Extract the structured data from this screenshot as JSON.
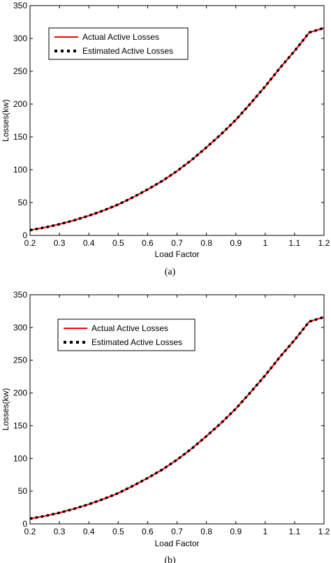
{
  "chart_data": [
    {
      "type": "line",
      "caption": "(a)",
      "xlabel": "Load Factor",
      "ylabel": "Losses(kw)",
      "xlim": [
        0.2,
        1.2
      ],
      "ylim": [
        0,
        350
      ],
      "xticks": [
        0.2,
        0.3,
        0.4,
        0.5,
        0.6,
        0.7,
        0.8,
        0.9,
        1,
        1.1,
        1.2
      ],
      "xtick_labels": [
        "0.2",
        "0.3",
        "0.4",
        "0.5",
        "0.6",
        "0.7",
        "0.8",
        "0.9",
        "1",
        "1.1",
        "1.2"
      ],
      "yticks": [
        0,
        50,
        100,
        150,
        200,
        250,
        300,
        350
      ],
      "ytick_labels": [
        "0",
        "50",
        "100",
        "150",
        "200",
        "250",
        "300",
        "350"
      ],
      "grid": false,
      "legend_position": "top-left",
      "series": [
        {
          "name": "Actual Active Losses",
          "style": "solid",
          "color": "#ff0000",
          "x": [
            0.2,
            0.25,
            0.3,
            0.35,
            0.4,
            0.45,
            0.5,
            0.55,
            0.6,
            0.65,
            0.7,
            0.75,
            0.8,
            0.85,
            0.9,
            0.95,
            1.0,
            1.05,
            1.1,
            1.15,
            1.2
          ],
          "values": [
            8,
            12,
            17,
            23,
            30,
            38,
            47,
            58,
            70,
            83,
            98,
            115,
            134,
            154,
            176,
            201,
            227,
            255,
            281,
            309,
            316
          ]
        },
        {
          "name": "Estimated Active Losses",
          "style": "dotted",
          "color": "#000000",
          "x": [
            0.2,
            0.25,
            0.3,
            0.35,
            0.4,
            0.45,
            0.5,
            0.55,
            0.6,
            0.65,
            0.7,
            0.75,
            0.8,
            0.85,
            0.9,
            0.95,
            1.0,
            1.05,
            1.1,
            1.15,
            1.2
          ],
          "values": [
            8,
            12,
            17,
            23,
            30,
            38,
            47,
            58,
            70,
            83,
            98,
            115,
            134,
            154,
            176,
            201,
            227,
            255,
            281,
            309,
            316
          ]
        }
      ]
    },
    {
      "type": "line",
      "caption": "(b)",
      "xlabel": "Load Factor",
      "ylabel": "Losses(kw)",
      "xlim": [
        0.2,
        1.2
      ],
      "ylim": [
        0,
        350
      ],
      "xticks": [
        0.2,
        0.3,
        0.4,
        0.5,
        0.6,
        0.7,
        0.8,
        0.9,
        1,
        1.1,
        1.2
      ],
      "xtick_labels": [
        "0.2",
        "0.3",
        "0.4",
        "0.5",
        "0.6",
        "0.7",
        "0.8",
        "0.9",
        "1",
        "1.1",
        "1.2"
      ],
      "yticks": [
        0,
        50,
        100,
        150,
        200,
        250,
        300,
        350
      ],
      "ytick_labels": [
        "0",
        "50",
        "100",
        "150",
        "200",
        "250",
        "300",
        "350"
      ],
      "grid": false,
      "legend_position": "top-left",
      "series": [
        {
          "name": "Actual Active Losses",
          "style": "solid",
          "color": "#ff0000",
          "x": [
            0.2,
            0.25,
            0.3,
            0.35,
            0.4,
            0.45,
            0.5,
            0.55,
            0.6,
            0.65,
            0.7,
            0.75,
            0.8,
            0.85,
            0.9,
            0.95,
            1.0,
            1.05,
            1.1,
            1.15,
            1.2
          ],
          "values": [
            8,
            12,
            17,
            23,
            30,
            38,
            47,
            58,
            70,
            83,
            98,
            115,
            134,
            154,
            176,
            201,
            227,
            255,
            281,
            309,
            316
          ]
        },
        {
          "name": "Estimated Active Losses",
          "style": "dotted",
          "color": "#000000",
          "x": [
            0.2,
            0.25,
            0.3,
            0.35,
            0.4,
            0.45,
            0.5,
            0.55,
            0.6,
            0.65,
            0.7,
            0.75,
            0.8,
            0.85,
            0.9,
            0.95,
            1.0,
            1.05,
            1.1,
            1.15,
            1.2
          ],
          "values": [
            8,
            12,
            17,
            23,
            30,
            38,
            47,
            58,
            70,
            83,
            98,
            115,
            134,
            154,
            176,
            201,
            227,
            255,
            281,
            309,
            316
          ]
        }
      ]
    }
  ]
}
